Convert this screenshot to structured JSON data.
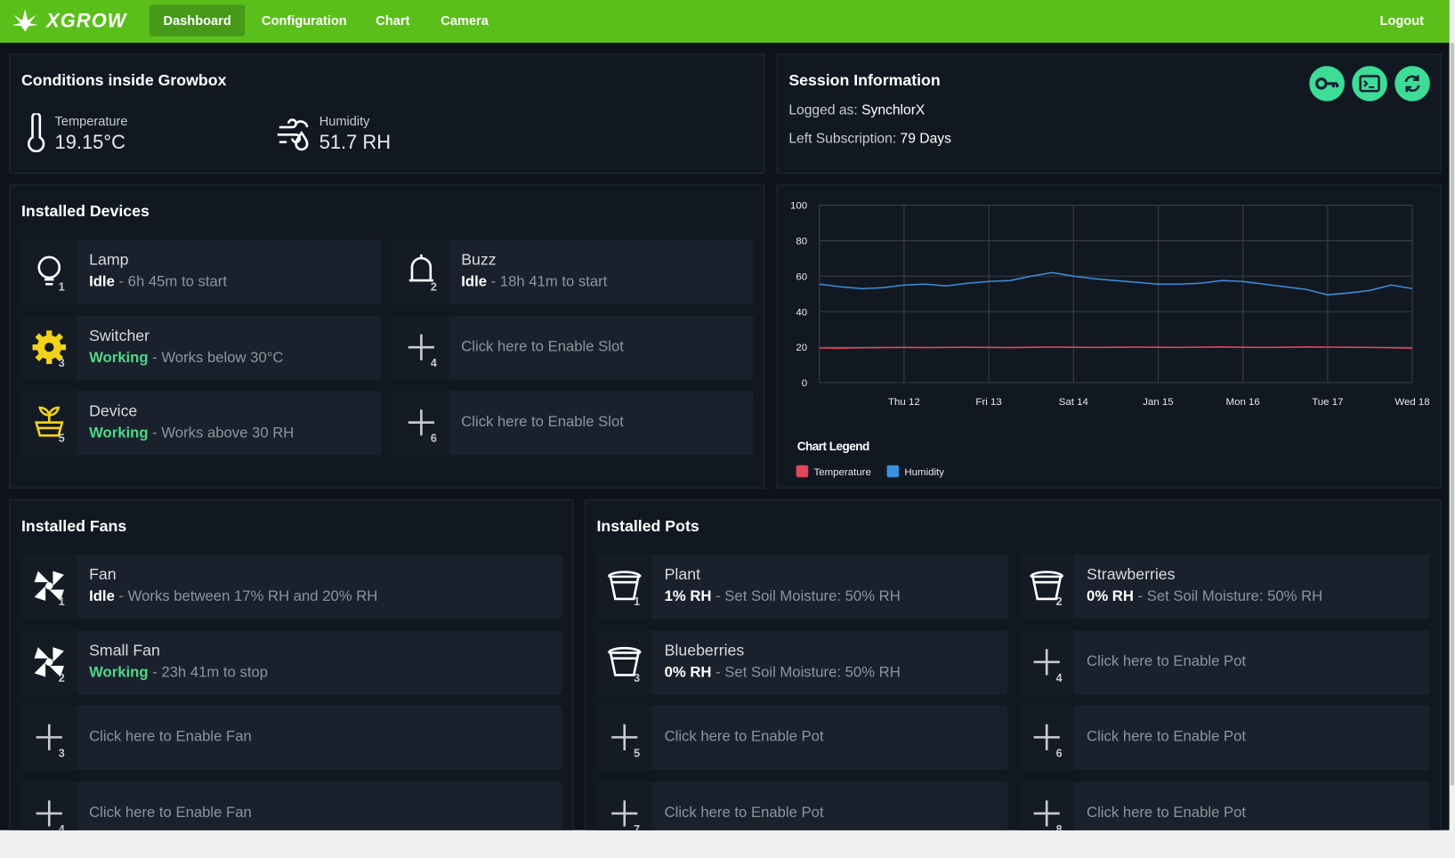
{
  "nav": {
    "brand": "XGROW",
    "links": [
      "Dashboard",
      "Configuration",
      "Chart",
      "Camera"
    ],
    "logout": "Logout"
  },
  "conditions": {
    "title": "Conditions inside Growbox",
    "temperature": {
      "label": "Temperature",
      "value": "19.15°C"
    },
    "humidity": {
      "label": "Humidity",
      "value": "51.7 RH"
    }
  },
  "session": {
    "title": "Session Information",
    "logged_label": "Logged as:",
    "user": "SynchlorX",
    "sub_label": "Left Subscription:",
    "sub_value": "79 Days"
  },
  "devices": {
    "title": "Installed Devices",
    "items": [
      {
        "name": "Lamp",
        "status": "Idle",
        "detail": "- 6h 45m to start",
        "status_color": "#ffffff",
        "number": 1
      },
      {
        "name": "Buzz",
        "status": "Idle",
        "detail": "- 18h 41m to start",
        "status_color": "#ffffff",
        "number": 2
      },
      {
        "name": "Switcher",
        "status": "Working",
        "detail": "- Works below 30°C",
        "status_color": "#4fd88a",
        "number": 3
      },
      {
        "text": "Click here to Enable Slot",
        "number": 4
      },
      {
        "name": "Device",
        "status": "Working",
        "detail": "- Works above 30 RH",
        "status_color": "#4fd88a",
        "number": 5
      },
      {
        "text": "Click here to Enable Slot",
        "number": 6
      }
    ]
  },
  "fans": {
    "title": "Installed Fans",
    "items": [
      {
        "name": "Fan",
        "status": "Idle",
        "detail": "- Works between 17% RH and 20% RH",
        "status_color": "#ffffff",
        "number": 1
      },
      {
        "name": "Small Fan",
        "status": "Working",
        "detail": "- 23h 41m to stop",
        "status_color": "#4fd88a",
        "number": 2
      },
      {
        "text": "Click here to Enable Fan",
        "number": 3
      },
      {
        "text": "Click here to Enable Fan",
        "number": 4
      }
    ]
  },
  "pots": {
    "title": "Installed Pots",
    "items": [
      {
        "name": "Plant",
        "status": "1% RH",
        "detail": "- Set Soil Moisture: 50% RH",
        "status_color": "#ffffff",
        "number": 1
      },
      {
        "name": "Strawberries",
        "status": "0% RH",
        "detail": "- Set Soil Moisture: 50% RH",
        "status_color": "#ffffff",
        "number": 2
      },
      {
        "name": "Blueberries",
        "status": "0% RH",
        "detail": "- Set Soil Moisture: 50% RH",
        "status_color": "#ffffff",
        "number": 3
      },
      {
        "text": "Click here to Enable Pot",
        "number": 4
      },
      {
        "text": "Click here to Enable Pot",
        "number": 5
      },
      {
        "text": "Click here to Enable Pot",
        "number": 6
      },
      {
        "text": "Click here to Enable Pot",
        "number": 7
      },
      {
        "text": "Click here to Enable Pot",
        "number": 8
      }
    ]
  },
  "chart_data": {
    "type": "line",
    "legend_title": "Chart Legend",
    "x": [
      0,
      0.25,
      0.5,
      0.75,
      1,
      1.25,
      1.5,
      1.75,
      2,
      2.25,
      2.5,
      2.75,
      3,
      3.25,
      3.5,
      3.75,
      4,
      4.25,
      4.5,
      4.75,
      5,
      5.25,
      5.5,
      5.75,
      6,
      6.25,
      6.5,
      6.75,
      7
    ],
    "xlim": [
      0,
      7
    ],
    "xticks": [
      {
        "value": 1,
        "label": "Thu 12"
      },
      {
        "value": 2,
        "label": "Fri 13"
      },
      {
        "value": 3,
        "label": "Sat 14"
      },
      {
        "value": 4,
        "label": "Jan 15"
      },
      {
        "value": 5,
        "label": "Mon 16"
      },
      {
        "value": 6,
        "label": "Tue 17"
      },
      {
        "value": 7,
        "label": "Wed 18"
      }
    ],
    "ylim": [
      0,
      100
    ],
    "yticks": [
      0,
      20,
      40,
      60,
      80,
      100
    ],
    "grid": true,
    "series": [
      {
        "name": "Temperature",
        "color": "#e0475b",
        "values": [
          19.5,
          19.4,
          19.6,
          19.7,
          19.8,
          19.7,
          19.8,
          19.9,
          19.8,
          19.7,
          19.9,
          20,
          19.9,
          19.8,
          19.9,
          20,
          19.9,
          19.8,
          20,
          20.1,
          19.9,
          19.8,
          19.9,
          20.1,
          20,
          19.9,
          19.8,
          19.6,
          19.4
        ]
      },
      {
        "name": "Humidity",
        "color": "#3b8fe0",
        "values": [
          55.5,
          54,
          53,
          53.5,
          55,
          55.5,
          54.5,
          56,
          57,
          57.5,
          60,
          62,
          60,
          58.5,
          57.5,
          56.5,
          55.5,
          55.5,
          56,
          57.5,
          57,
          55.5,
          54,
          52.5,
          49.5,
          50.5,
          52,
          55,
          53
        ]
      }
    ]
  }
}
